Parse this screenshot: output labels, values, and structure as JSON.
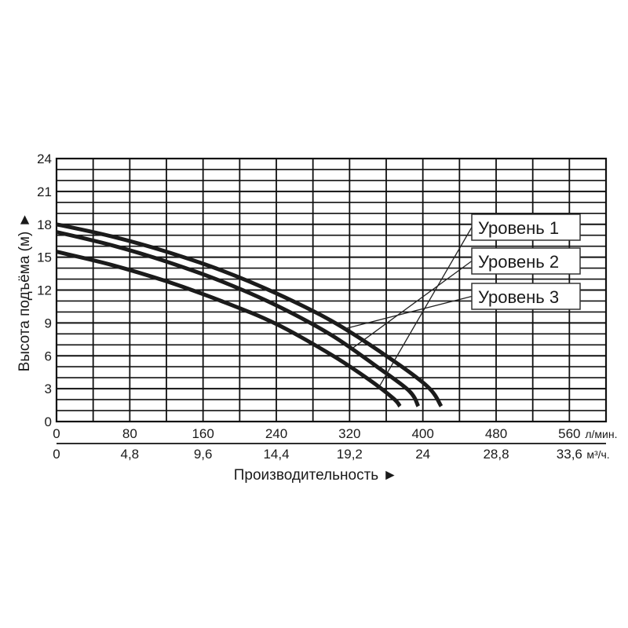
{
  "chart_data": {
    "type": "line",
    "ylabel": "Высота подъёма (м) ►",
    "xlabel": "Производительность ►",
    "ylim": [
      0,
      24
    ],
    "xlim": [
      0,
      600
    ],
    "y_ticks": [
      "0",
      "3",
      "6",
      "9",
      "12",
      "15",
      "18",
      "21",
      "24"
    ],
    "x_ticks_top": [
      "0",
      "80",
      "160",
      "240",
      "320",
      "400",
      "480",
      "560"
    ],
    "x_unit_top": "л/мин.",
    "x_ticks_bottom": [
      "0",
      "4,8",
      "9,6",
      "14,4",
      "19,2",
      "24",
      "28,8",
      "33,6"
    ],
    "x_unit_bottom": "м³/ч.",
    "grid": true,
    "series": [
      {
        "name": "Уровень 1",
        "x": [
          0,
          60,
          120,
          180,
          240,
          300,
          340,
          368,
          375
        ],
        "y": [
          15.5,
          14.3,
          12.8,
          11.0,
          8.9,
          6.1,
          3.9,
          2.1,
          1.4
        ]
      },
      {
        "name": "Уровень 2",
        "x": [
          0,
          60,
          120,
          180,
          240,
          300,
          350,
          385,
          395
        ],
        "y": [
          17.3,
          16.1,
          14.6,
          12.8,
          10.6,
          7.9,
          5.0,
          2.8,
          1.4
        ]
      },
      {
        "name": "Уровень 3",
        "x": [
          0,
          60,
          120,
          180,
          240,
          300,
          360,
          405,
          420
        ],
        "y": [
          18.0,
          16.9,
          15.5,
          13.8,
          11.7,
          9.2,
          6.0,
          3.2,
          1.4
        ]
      }
    ]
  }
}
